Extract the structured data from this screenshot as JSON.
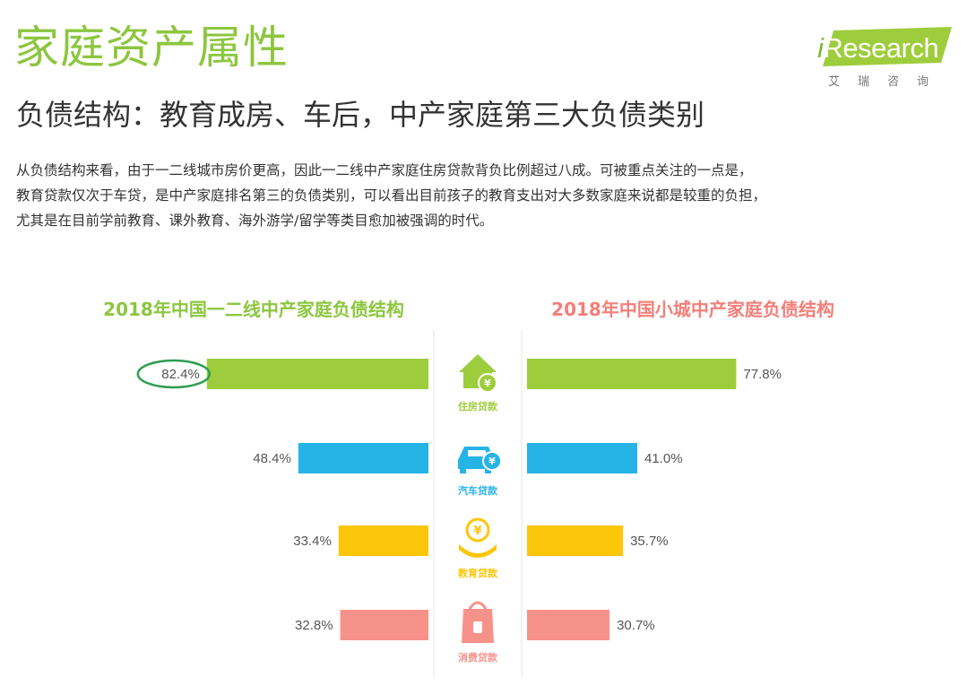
{
  "header": {
    "title": "家庭资产属性",
    "subtitle": "负债结构：教育成房、车后，中产家庭第三大负债类别",
    "logo": {
      "word": "Research",
      "i": "i",
      "sub": "艾瑞咨询"
    },
    "body_lines": [
      "从负债结构来看，由于一二线城市房价更高，因此一二线中产家庭住房贷款背负比例超过八成。可被重点关注的一点是，",
      "教育贷款仅次于车贷，是中产家庭排名第三的负债类别，可以看出目前孩子的教育支出对大多数家庭来说都是较重的负担，",
      "尤其是在目前学前教育、课外教育、海外游学/留学等类目愈加被强调的时代。"
    ]
  },
  "chart_data": {
    "type": "bar",
    "orientation": "horizontal-butterfly",
    "categories": [
      "住房贷款",
      "汽车贷款",
      "教育贷款",
      "消费贷款"
    ],
    "category_icons": [
      "house-coin-icon",
      "car-coin-icon",
      "hand-coin-icon",
      "shopping-bag-icon"
    ],
    "series": [
      {
        "name": "2018年中国一二线中产家庭负债结构",
        "values": [
          82.4,
          48.4,
          33.4,
          32.8
        ],
        "labels": [
          "82.4%",
          "48.4%",
          "33.4%",
          "32.8%"
        ],
        "direction": "left"
      },
      {
        "name": "2018年中国小城中产家庭负债结构",
        "values": [
          77.8,
          41.0,
          35.7,
          30.7
        ],
        "labels": [
          "77.8%",
          "41.0%",
          "35.7%",
          "30.7%"
        ],
        "direction": "right"
      }
    ],
    "colors": [
      "#9dcd3c",
      "#26b3e6",
      "#fcc60a",
      "#f7928a"
    ],
    "title_colors": [
      "#8cc63f",
      "#f37f79"
    ],
    "highlight": {
      "series": 0,
      "category": 0,
      "style": "ellipse",
      "color": "#2e9e4f"
    },
    "xlim": [
      0,
      100
    ],
    "grid": false,
    "legend": "none"
  }
}
